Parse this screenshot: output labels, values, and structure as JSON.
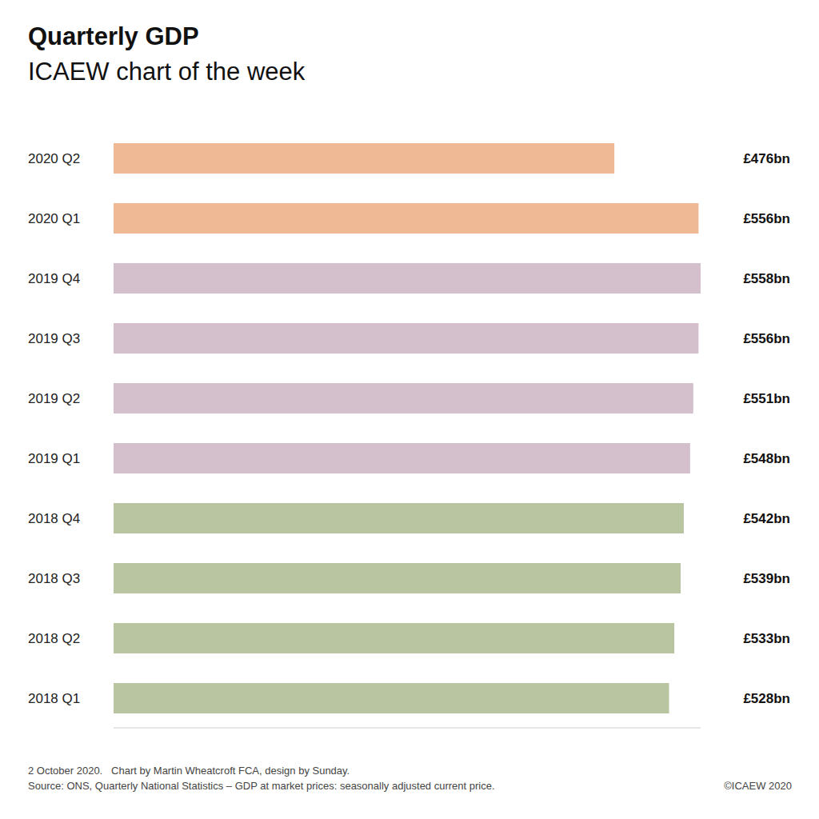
{
  "chart_data": {
    "type": "bar",
    "title": "Quarterly GDP",
    "subtitle": "ICAEW chart of the week",
    "orientation": "horizontal",
    "categories": [
      "2020 Q2",
      "2020 Q1",
      "2019 Q4",
      "2019 Q3",
      "2019 Q2",
      "2019 Q1",
      "2018 Q4",
      "2018 Q3",
      "2018 Q2",
      "2018 Q1"
    ],
    "values": [
      476,
      556,
      558,
      556,
      551,
      548,
      542,
      539,
      533,
      528
    ],
    "value_labels": [
      "£476bn",
      "£556bn",
      "£558bn",
      "£556bn",
      "£551bn",
      "£548bn",
      "£542bn",
      "£539bn",
      "£533bn",
      "£528bn"
    ],
    "colors": [
      "#efb995",
      "#efb995",
      "#d4bfcc",
      "#d4bfcc",
      "#d4bfcc",
      "#d4bfcc",
      "#b9c4a0",
      "#b9c4a0",
      "#b9c4a0",
      "#b9c4a0"
    ],
    "xlim": [
      0,
      558
    ],
    "data_labels": true,
    "tick_labels": "y",
    "grid": false,
    "annotations": [
      "2 October 2020.   Chart by Martin Wheatcroft FCA, design by Sunday.",
      "Source: ONS, Quarterly National Statistics – GDP at market prices: seasonally adjusted current price.",
      "©ICAEW 2020"
    ]
  }
}
